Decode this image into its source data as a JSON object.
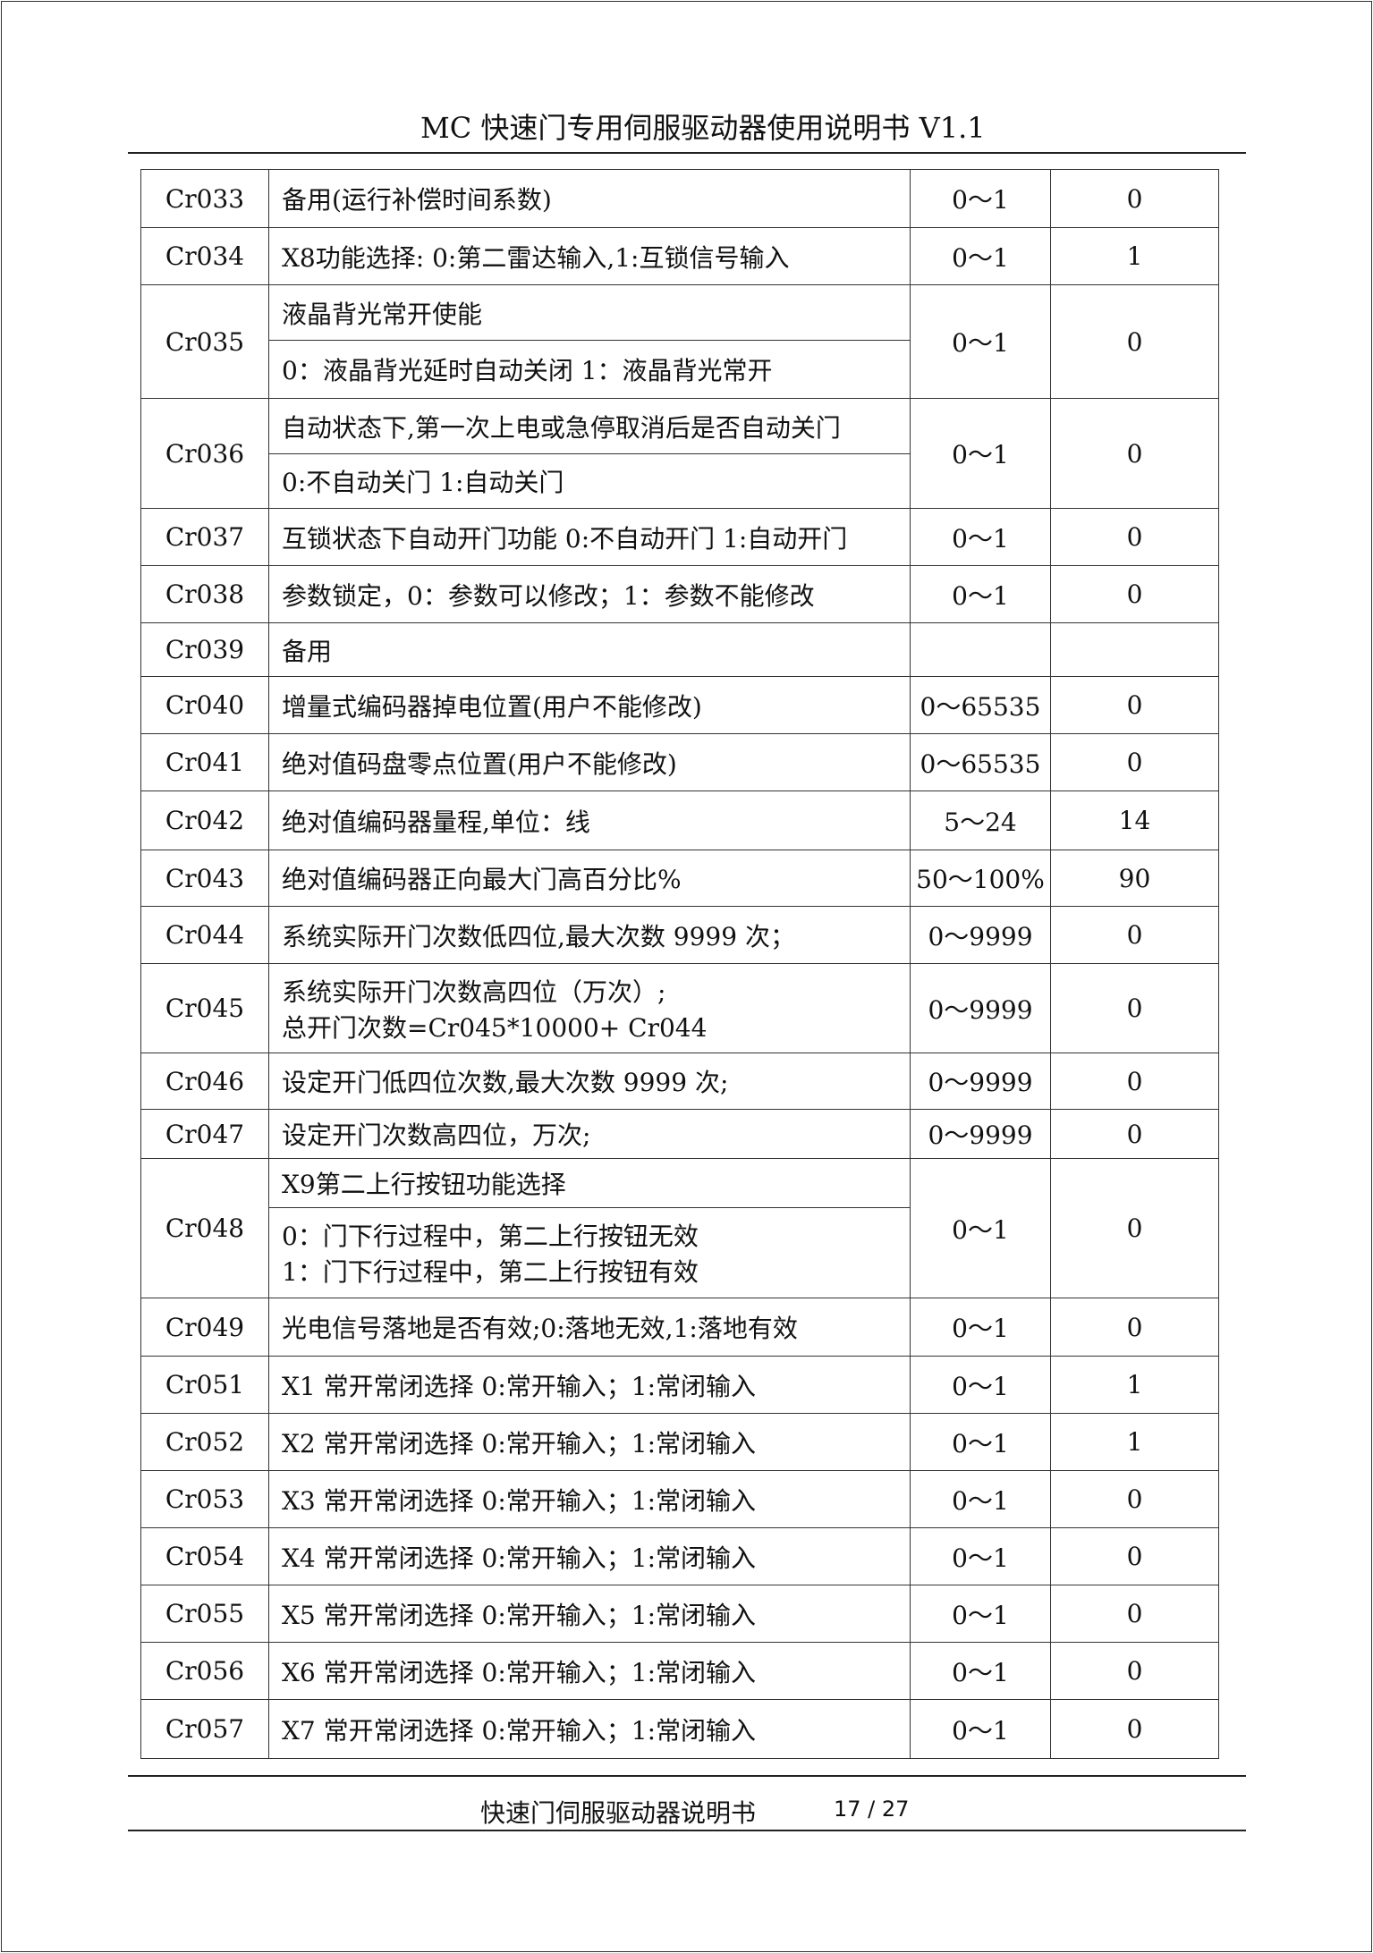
{
  "header": {
    "title": "MC 快速门专用伺服驱动器使用说明书 V1.1"
  },
  "table": {
    "rows": [
      {
        "code": "Cr033",
        "desc": [
          "备用(运行补偿时间系数)"
        ],
        "range": "0～1",
        "default": "0"
      },
      {
        "code": "Cr034",
        "desc": [
          "X8功能选择: 0:第二雷达输入,1:互锁信号输入"
        ],
        "range": "0～1",
        "default": "1"
      },
      {
        "code": "Cr035",
        "split": [
          [
            "液晶背光常开使能"
          ],
          [
            "0：液晶背光延时自动关闭    1：液晶背光常开"
          ]
        ],
        "range": "0～1",
        "default": "0"
      },
      {
        "code": "Cr036",
        "split": [
          [
            "自动状态下,第一次上电或急停取消后是否自动关门"
          ],
          [
            " 0:不自动关门 1:自动关门"
          ]
        ],
        "range": "0～1",
        "default": "0"
      },
      {
        "code": "Cr037",
        "desc": [
          "互锁状态下自动开门功能 0:不自动开门 1:自动开门"
        ],
        "range": "0～1",
        "default": "0"
      },
      {
        "code": "Cr038",
        "desc": [
          "参数锁定，0：参数可以修改；1：参数不能修改"
        ],
        "range": "0～1",
        "default": "0"
      },
      {
        "code": "Cr039",
        "desc": [
          "备用"
        ],
        "range": "",
        "default": ""
      },
      {
        "code": "Cr040",
        "desc": [
          "增量式编码器掉电位置(用户不能修改)"
        ],
        "range": "0～65535",
        "default": "0"
      },
      {
        "code": "Cr041",
        "desc": [
          "绝对值码盘零点位置(用户不能修改)"
        ],
        "range": "0～65535",
        "default": "0"
      },
      {
        "code": "Cr042",
        "desc": [
          "绝对值编码器量程,单位：线"
        ],
        "range": "5～24",
        "default": "14"
      },
      {
        "code": "Cr043",
        "desc": [
          "绝对值编码器正向最大门高百分比%"
        ],
        "range": "50～100%",
        "default": "90"
      },
      {
        "code": "Cr044",
        "desc": [
          "系统实际开门次数低四位,最大次数 9999 次；"
        ],
        "range": "0～9999",
        "default": "0"
      },
      {
        "code": "Cr045",
        "desc": [
          "系统实际开门次数高四位（万次）;",
          "总开门次数=Cr045*10000+ Cr044"
        ],
        "range": "0～9999",
        "default": "0"
      },
      {
        "code": "Cr046",
        "desc": [
          "设定开门低四位次数,最大次数 9999 次;"
        ],
        "range": "0～9999",
        "default": "0"
      },
      {
        "code": "Cr047",
        "desc": [
          "设定开门次数高四位，万次;"
        ],
        "range": "0～9999",
        "default": "0"
      },
      {
        "code": "Cr048",
        "split": [
          [
            "X9第二上行按钮功能选择"
          ],
          [
            "0：门下行过程中，第二上行按钮无效",
            "1：门下行过程中，第二上行按钮有效"
          ]
        ],
        "range": "0～1",
        "default": "0"
      },
      {
        "code": "Cr049",
        "desc": [
          "光电信号落地是否有效;0:落地无效,1:落地有效"
        ],
        "range": "0～1",
        "default": "0"
      },
      {
        "code": "Cr051",
        "desc": [
          "X1 常开常闭选择 0:常开输入；1:常闭输入"
        ],
        "range": "0～1",
        "default": "1"
      },
      {
        "code": "Cr052",
        "desc": [
          "X2 常开常闭选择 0:常开输入；1:常闭输入"
        ],
        "range": "0～1",
        "default": "1"
      },
      {
        "code": "Cr053",
        "desc": [
          "X3 常开常闭选择 0:常开输入；1:常闭输入"
        ],
        "range": "0～1",
        "default": "0"
      },
      {
        "code": "Cr054",
        "desc": [
          "X4 常开常闭选择 0:常开输入；1:常闭输入"
        ],
        "range": "0～1",
        "default": "0"
      },
      {
        "code": "Cr055",
        "desc": [
          "X5 常开常闭选择 0:常开输入；1:常闭输入"
        ],
        "range": "0～1",
        "default": "0"
      },
      {
        "code": "Cr056",
        "desc": [
          "X6 常开常闭选择 0:常开输入；1:常闭输入"
        ],
        "range": "0～1",
        "default": "0"
      },
      {
        "code": "Cr057",
        "desc": [
          "X7 常开常闭选择 0:常开输入；1:常闭输入"
        ],
        "range": "0～1",
        "default": "0"
      }
    ]
  },
  "footer": {
    "title": "快速门伺服驱动器说明书",
    "page": "17 / 27"
  }
}
